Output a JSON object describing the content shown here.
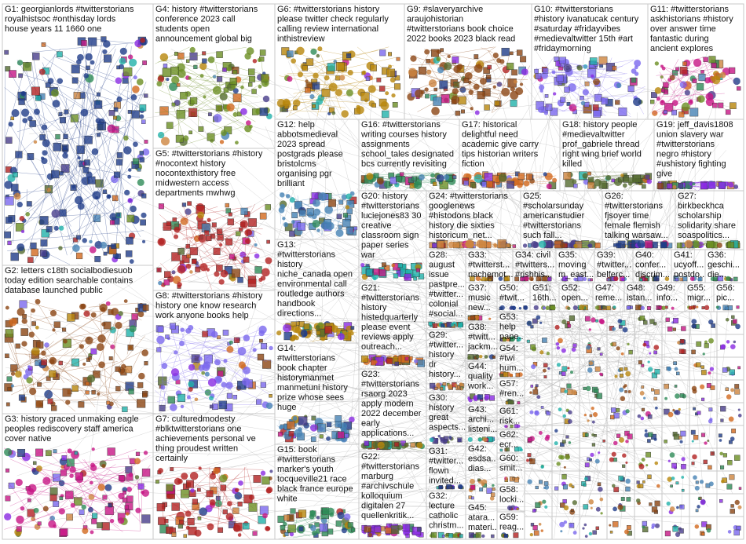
{
  "groups": [
    {
      "lines": [
        "G1: georgianlords #twitterstorians",
        "royalhistsoc #onthisday lords",
        "house years 11 1660 one"
      ]
    },
    {
      "lines": [
        "G4: history #twitterstorians",
        "conference 2023 call",
        "students open",
        "announcement global big"
      ]
    },
    {
      "lines": [
        "G6: #twitterstorians history",
        "please twitter check regularly",
        "calling review international",
        "inthistreview"
      ]
    },
    {
      "lines": [
        "G9: #slaveryarchive",
        "araujohistorian",
        "#twitterstorians book choice",
        "2022 books 2023 black read"
      ]
    },
    {
      "lines": [
        "G10: #twitterstorians",
        "#history ivanatucak century",
        "#saturday #fridayvibes",
        "#medievaltwitter 15th #art",
        "#fridaymorning"
      ]
    },
    {
      "lines": [
        "G11: #twitterstorians",
        "askhistorians #history",
        "over answer time",
        "fantastic during",
        "ancient explores"
      ]
    },
    {
      "lines": [
        "G5: #twitterstorians #history",
        "#nocontext history",
        "nocontexthistory free",
        "midwestern access",
        "departments mwhwg"
      ]
    },
    {
      "lines": [
        "G12: help",
        "abbotsmedieval",
        "2023 spread",
        "postgrads please",
        "bristolcms",
        "organising pgr",
        "brilliant"
      ]
    },
    {
      "lines": [
        "G16: #twitterstorians",
        "writing courses history",
        "assignments",
        "school_tales designated",
        "bcs currently revisiting"
      ]
    },
    {
      "lines": [
        "G17: historical",
        "delightful need",
        "academic give carry",
        "tips historian writers",
        "fiction"
      ]
    },
    {
      "lines": [
        "G18: history people",
        "#medievaltwitter",
        "prof_gabriele thread",
        "right wing brief world",
        "killed"
      ]
    },
    {
      "lines": [
        "G19: jeff_davis1808",
        "union slavery war",
        "#twitterstorians",
        "negro #history",
        "#ushistory fighting",
        "give"
      ]
    },
    {
      "lines": [
        "G20: history",
        "#twitterstorians",
        "luciejones83 30",
        "creative",
        "classroom sign",
        "paper series",
        "war"
      ]
    },
    {
      "lines": [
        "G24: #twitterstorians",
        "googlenews",
        "#histodons black",
        "history die sixties",
        "historicum_net..."
      ]
    },
    {
      "lines": [
        "G25:",
        "#scholarsunday",
        "americanstudier",
        "#twitterstorians",
        "such fall..."
      ]
    },
    {
      "lines": [
        "G26:",
        "#twitterstorians",
        "fjsoyer time",
        "female flemish",
        "talking warsaw..."
      ]
    },
    {
      "lines": [
        "G27:",
        "birkbeckhca",
        "scholarship",
        "solidarity share",
        "soaspolitics..."
      ]
    },
    {
      "lines": [
        "G13:",
        "#twitterstorians",
        "history",
        "niche_canada open",
        "environmental call",
        "routledge authors",
        "handbook",
        "directions..."
      ]
    },
    {
      "lines": [
        "G2: letters c18th socialbodiesuob",
        "today edition searchable contains",
        "database launched public"
      ]
    },
    {
      "lines": [
        "G8: #twitterstorians #history",
        "history one know research",
        "work anyone books help"
      ]
    },
    {
      "lines": [
        "G3: history graced unmaking eagle",
        "peoples rediscovery staff america",
        "cover native"
      ]
    },
    {
      "lines": [
        "G7: culturedmodesty",
        "#blktwitterstorians one",
        "achievements personal ve",
        "thing proudest written",
        "certainly"
      ]
    },
    {
      "lines": [
        "G14:",
        "#twitterstorians",
        "book chapter",
        "historymanmet",
        "manmetuni history",
        "prize whose sees",
        "huge"
      ]
    },
    {
      "lines": [
        "G15: book",
        "#twitterstorians",
        "marker's youth",
        "tocqueville21 race",
        "black france europe",
        "white"
      ]
    },
    {
      "lines": [
        "G21:",
        "#twitterstorians",
        "history",
        "histedquarterly",
        "please event",
        "reviews apply",
        "outreach..."
      ]
    },
    {
      "lines": [
        "G23:",
        "#twitterstorians",
        "rsaorg 2023",
        "apply modern",
        "2022 december",
        "early",
        "applications..."
      ]
    },
    {
      "lines": [
        "G22:",
        "#twitterstorians",
        "marburg",
        "#archivschule",
        "kolloquium",
        "digitalen 27",
        "quellenkritik..."
      ]
    },
    {
      "lines": [
        "G28:",
        "august",
        "issue",
        "pastpre...",
        "#twitter...",
        "colonial",
        "#social..."
      ]
    },
    {
      "lines": [
        "G29:",
        "#twitter...",
        "history",
        "dr",
        "history..."
      ]
    },
    {
      "lines": [
        "G30:",
        "history",
        "great",
        "aspects..."
      ]
    },
    {
      "lines": [
        "G31:",
        "#twitter...",
        "flown",
        "invited..."
      ]
    },
    {
      "lines": [
        "G32:",
        "lecture",
        "catholic",
        "christm..."
      ]
    },
    {
      "lines": [
        "G33:",
        "#twitterst...",
        "nachemot..."
      ]
    },
    {
      "lines": [
        "G34: civil",
        "#twitters...",
        "#rishhis..."
      ]
    },
    {
      "lines": [
        "G35:",
        "moving",
        "m_east..."
      ]
    },
    {
      "lines": [
        "G39:",
        "#twitter...",
        "belferc..."
      ]
    },
    {
      "lines": [
        "G40:",
        "confer...",
        "discrim..."
      ]
    },
    {
      "lines": [
        "G41:",
        "ucyoff...",
        "postdo..."
      ]
    },
    {
      "lines": [
        "G36:",
        "geschi...",
        "die..."
      ]
    },
    {
      "lines": [
        "G37:",
        "music",
        "new..."
      ]
    },
    {
      "lines": [
        "G38:",
        "#twitt...",
        "jackm..."
      ]
    },
    {
      "lines": [
        "G44:",
        "quality",
        "work..."
      ]
    },
    {
      "lines": [
        "G43:",
        "archi...",
        "listeni..."
      ]
    },
    {
      "lines": [
        "G42:",
        "esdsa...",
        "dias..."
      ]
    },
    {
      "lines": [
        "G45:",
        "atara...",
        "materi..."
      ]
    },
    {
      "lines": [
        "G50:",
        "#twit..."
      ]
    },
    {
      "lines": [
        "G51:",
        "16th..."
      ]
    },
    {
      "lines": [
        "G52:",
        "open..."
      ]
    },
    {
      "lines": [
        "G47:",
        "reme..."
      ]
    },
    {
      "lines": [
        "G48:",
        "istan..."
      ]
    },
    {
      "lines": [
        "G49:",
        "info..."
      ]
    },
    {
      "lines": [
        "G55:",
        "migr..."
      ]
    },
    {
      "lines": [
        "G56:",
        "pic..."
      ]
    },
    {
      "lines": [
        "G53:",
        "help",
        "pape..."
      ]
    },
    {
      "lines": [
        "G54:",
        "#twi",
        "hum..."
      ]
    },
    {
      "lines": [
        "G57:",
        "#ren..."
      ]
    },
    {
      "lines": [
        "G61:",
        "risk..."
      ]
    },
    {
      "lines": [
        "G62:",
        "ecr..."
      ]
    },
    {
      "lines": [
        "G60:",
        "smit..."
      ]
    },
    {
      "lines": [
        "G58:",
        "locki..."
      ]
    },
    {
      "lines": [
        "G59:",
        "reag..."
      ]
    }
  ]
}
